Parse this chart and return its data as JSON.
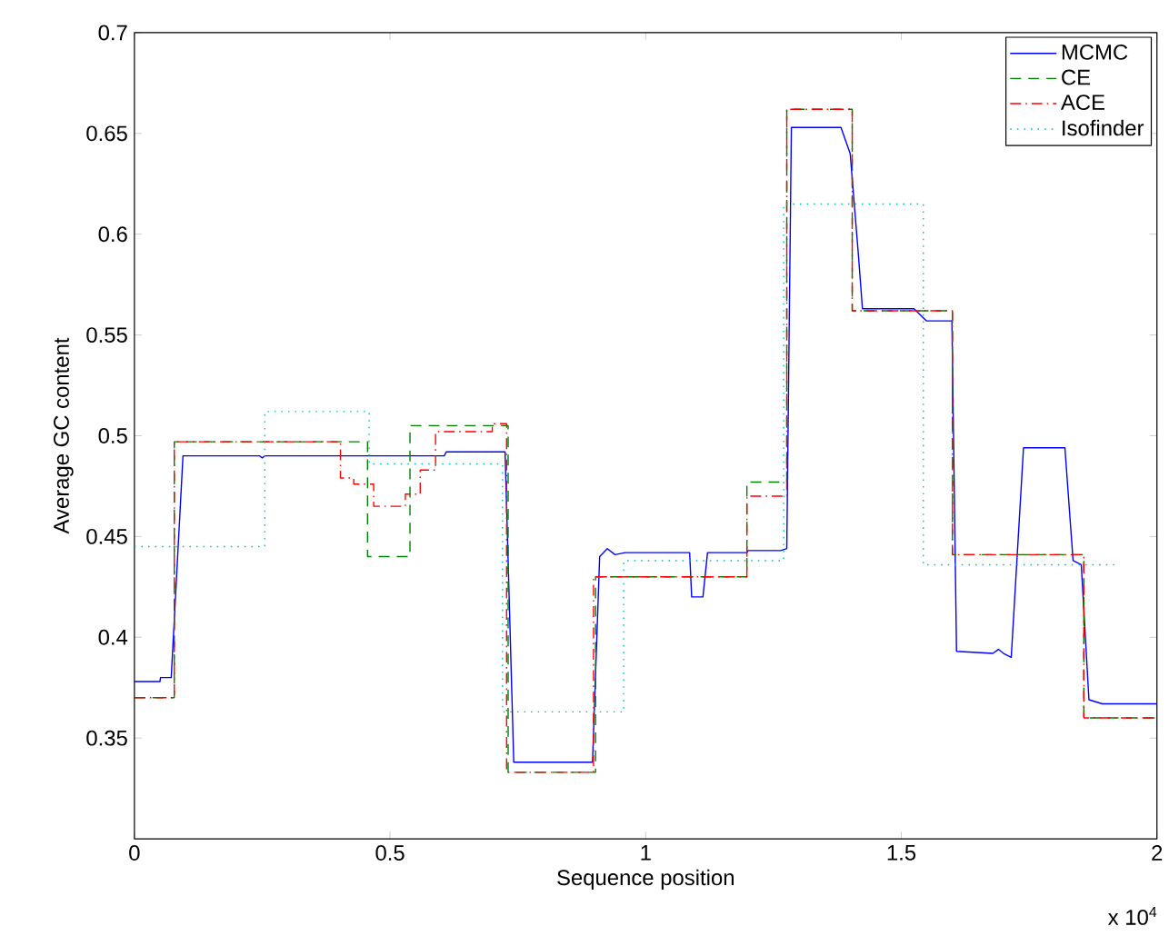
{
  "chart_data": {
    "type": "line",
    "xlabel": "Sequence position",
    "ylabel": "Average GC content",
    "xlim": [
      0,
      2
    ],
    "ylim": [
      0.3,
      0.7
    ],
    "xticks": [
      0,
      0.5,
      1,
      1.5,
      2
    ],
    "yticks": [
      0.35,
      0.4,
      0.45,
      0.5,
      0.55,
      0.6,
      0.65,
      0.7
    ],
    "grid": false,
    "legend": "top right",
    "annotations": [
      "x 10$^{4}$"
    ],
    "series": [
      {
        "name": "MCMC",
        "color": "#0000ff",
        "line_style": "solid",
        "x": [
          0,
          0.05,
          0.051,
          0.072,
          0.095,
          0.245,
          0.25,
          0.255,
          0.606,
          0.61,
          0.725,
          0.742,
          0.896,
          0.91,
          0.925,
          0.94,
          0.96,
          1.086,
          1.09,
          1.112,
          1.121,
          1.198,
          1.2,
          1.264,
          1.276,
          1.285,
          1.382,
          1.4,
          1.416,
          1.424,
          1.525,
          1.549,
          1.599,
          1.608,
          1.679,
          1.69,
          1.7,
          1.715,
          1.739,
          1.82,
          1.836,
          1.852,
          1.867,
          1.893,
          2.0
        ],
        "values": [
          0.378,
          0.378,
          0.38,
          0.38,
          0.49,
          0.49,
          0.489,
          0.49,
          0.49,
          0.492,
          0.492,
          0.338,
          0.338,
          0.44,
          0.444,
          0.441,
          0.442,
          0.442,
          0.42,
          0.42,
          0.442,
          0.442,
          0.443,
          0.443,
          0.444,
          0.653,
          0.653,
          0.64,
          0.59,
          0.563,
          0.563,
          0.557,
          0.557,
          0.393,
          0.392,
          0.394,
          0.392,
          0.39,
          0.494,
          0.494,
          0.438,
          0.436,
          0.369,
          0.367,
          0.367
        ]
      },
      {
        "name": "CE",
        "type": "step",
        "color": "#008000",
        "line_style": "dashed",
        "x": [
          0,
          0.078,
          0.456,
          0.539,
          0.731,
          0.902,
          1.198,
          1.276,
          1.404,
          1.6,
          1.857,
          2.0
        ],
        "values": [
          0.37,
          0.497,
          0.44,
          0.505,
          0.333,
          0.43,
          0.477,
          0.662,
          0.562,
          0.441,
          0.36,
          0.36
        ]
      },
      {
        "name": "ACE",
        "type": "step",
        "color": "#ff0000",
        "line_style": "dashdot",
        "x": [
          0,
          0.078,
          0.403,
          0.429,
          0.468,
          0.53,
          0.559,
          0.589,
          0.7,
          0.728,
          0.898,
          1.198,
          1.276,
          1.404,
          1.6,
          1.857,
          2.0
        ],
        "values": [
          0.37,
          0.497,
          0.479,
          0.476,
          0.465,
          0.471,
          0.483,
          0.502,
          0.506,
          0.333,
          0.43,
          0.47,
          0.662,
          0.562,
          0.441,
          0.36,
          0.36
        ]
      },
      {
        "name": "Isofinder",
        "type": "step",
        "color": "#00bfbf",
        "line_style": "dotted",
        "x": [
          0,
          0.255,
          0.459,
          0.72,
          0.957,
          1.27,
          1.543,
          1.926
        ],
        "values": [
          0.445,
          0.512,
          0.486,
          0.363,
          0.438,
          0.615,
          0.436,
          0.436
        ]
      }
    ]
  }
}
